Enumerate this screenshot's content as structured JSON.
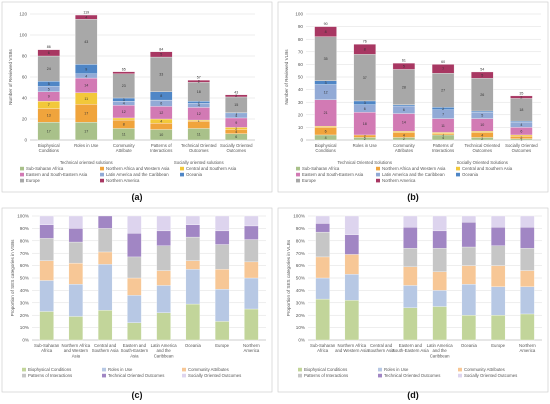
{
  "colors": {
    "Sub-Saharan Africa": "#a9c18a",
    "Northern Africa and Western Asia": "#f0a43c",
    "Central and Southern Asia": "#f2c83a",
    "Eastern and South-Eastern Asia": "#d27ab4",
    "Latin America and the Caribbean": "#92aad6",
    "Oceania": "#4f86c6",
    "Europe": "#a8a8a8",
    "Northern America": "#a83762",
    "Biophysical Conditions": "#c2d59a",
    "Roles in Use": "#b7c8e4",
    "Community Attributes": "#f7c796",
    "Patterns of Interactions": "#c6c6c6",
    "Technical Oriented Outcomes": "#a186c4",
    "Socially Oriented Outcomes": "#ddd4ee"
  },
  "chart_data": [
    {
      "panel": "(a)",
      "type": "bar",
      "stacked": true,
      "ylabel": "Number of Reviewed VSBs",
      "ylim": [
        0,
        120
      ],
      "yticks": [
        0,
        20,
        40,
        60,
        80,
        100,
        120
      ],
      "grid": true,
      "legend_position": "bottom",
      "categories": [
        "Biophysical Conditions",
        "Roles in Use",
        "Community Attribute",
        "Patterns of Interactions",
        "Technical Oriented Outcomes",
        "Socially Oriented Outcomes"
      ],
      "category_labels": [
        "Biophysical|Conditions",
        "Roles in Use",
        "Community|Attribute",
        "Patterns of|Interactions",
        "Technical Oriented|Outcomes",
        "Socially Oriented|Outcomes"
      ],
      "group_labels": [
        "Technical oriented solutions",
        "Socially oriented solutions"
      ],
      "series": [
        {
          "name": "Sub-Saharan Africa",
          "values": [
            17,
            17,
            11,
            10,
            11,
            6
          ]
        },
        {
          "name": "Northern Africa and Western Asia",
          "values": [
            13,
            17,
            8,
            6,
            7,
            4
          ]
        },
        {
          "name": "Central and Southern Asia",
          "values": [
            7,
            11,
            2,
            4,
            1,
            2
          ]
        },
        {
          "name": "Eastern and South-Eastern Asia",
          "values": [
            9,
            14,
            12,
            12,
            12,
            9
          ]
        },
        {
          "name": "Latin America and the Caribbean",
          "values": [
            5,
            4,
            4,
            6,
            4,
            4
          ]
        },
        {
          "name": "Oceania",
          "values": [
            5,
            9,
            3,
            8,
            2,
            1
          ]
        },
        {
          "name": "Europe",
          "values": [
            24,
            43,
            23,
            33,
            18,
            15
          ]
        },
        {
          "name": "Northern America",
          "values": [
            6,
            4,
            2,
            5,
            2,
            2
          ]
        }
      ],
      "data_labels": [
        [
          "17",
          "17",
          "11",
          "10",
          "11",
          "6"
        ],
        [
          "13",
          "17",
          "8",
          "",
          "",
          "4"
        ],
        [
          "7",
          "11",
          "",
          "4",
          "1",
          "2"
        ],
        [
          "9",
          "14",
          "12",
          "12",
          "12",
          "9"
        ],
        [
          "5",
          "4",
          "4",
          "6",
          "4",
          "4"
        ],
        [
          "5",
          "9",
          "3",
          "8",
          "2",
          "1"
        ],
        [
          "24",
          "43",
          "23",
          "33",
          "18",
          "15"
        ],
        [
          "6",
          "4",
          "",
          "5",
          "2",
          "2"
        ]
      ]
    },
    {
      "panel": "(b)",
      "type": "bar",
      "stacked": true,
      "ylabel": "Number of Reviewed VLBs",
      "ylim": [
        0,
        100
      ],
      "yticks": [
        0,
        10,
        20,
        30,
        40,
        50,
        60,
        70,
        80,
        90,
        100
      ],
      "grid": true,
      "legend_position": "bottom",
      "categories": [
        "Biophysical Conditions",
        "Roles in Use",
        "Community Attributes",
        "Patterns of Interactions",
        "Technical Oriented Outcomes",
        "Socially Oriented Outcomes"
      ],
      "category_labels": [
        "Biophysical|Conditions",
        "Roles in Use",
        "Community|Attributes",
        "Patterns of|Interactions",
        "Technical Oriented|Outcomes",
        "Socially Oriented|Outcomes"
      ],
      "group_labels": [
        "Technical Oriented Solutions",
        "Socially Oriented Solutions"
      ],
      "series": [
        {
          "name": "Sub-Saharan Africa",
          "values": [
            4,
            2,
            2,
            4,
            2,
            1
          ]
        },
        {
          "name": "Northern Africa and Western Asia",
          "values": [
            6,
            2,
            4,
            1,
            4,
            2
          ]
        },
        {
          "name": "Central and Southern Asia",
          "values": [
            1,
            0,
            1,
            1,
            1,
            1
          ]
        },
        {
          "name": "Eastern and South-Eastern Asia",
          "values": [
            21,
            18,
            14,
            11,
            10,
            6
          ]
        },
        {
          "name": "Latin America and the Caribbean",
          "values": [
            12,
            6,
            6,
            7,
            5,
            4
          ]
        },
        {
          "name": "Oceania",
          "values": [
            3,
            3,
            1,
            2,
            1,
            1
          ]
        },
        {
          "name": "Europe",
          "values": [
            35,
            37,
            28,
            27,
            26,
            18
          ]
        },
        {
          "name": "Northern America",
          "values": [
            8,
            8,
            5,
            7,
            5,
            2
          ]
        }
      ],
      "data_labels": [
        [
          "4",
          "2",
          "2",
          "4",
          "2",
          "1"
        ],
        [
          "6",
          "2",
          "4",
          "1",
          "4",
          "2"
        ],
        [
          "",
          "",
          "",
          "",
          "",
          ""
        ],
        [
          "21",
          "18",
          "14",
          "11",
          "10",
          "6"
        ],
        [
          "12",
          "6",
          "6",
          "7",
          "5",
          "4"
        ],
        [
          "3",
          "3",
          "",
          "2",
          "",
          ""
        ],
        [
          "35",
          "37",
          "28",
          "27",
          "26",
          "18"
        ],
        [
          "8",
          "8",
          "5",
          "7",
          "5",
          "2"
        ]
      ]
    },
    {
      "panel": "(c)",
      "type": "bar",
      "stacked": true,
      "percent": true,
      "ylabel": "Proportion of SES categories in VSBs",
      "ylim": [
        0,
        100
      ],
      "yticks": [
        0,
        10,
        20,
        30,
        40,
        50,
        60,
        70,
        80,
        90,
        100
      ],
      "ytick_suffix": "%",
      "grid": true,
      "legend_position": "bottom",
      "categories": [
        "Sub-Saharan Africa",
        "Northern Africa and Western Asia",
        "Central and Southern Asia",
        "Eastern and South-Eastern Asia",
        "Latin America and the Caribbean",
        "Oceania",
        "Europe",
        "Northern America"
      ],
      "category_labels": [
        "Sub-Saharan|Africa",
        "Northern Africa|and Western|Asia",
        "Central and|Southern Asia",
        "Eastern and|South-Eastern|Asia",
        "Latin America|and the|Caribbean",
        "Oceania",
        "Europe",
        "Northern|America"
      ],
      "series": [
        {
          "name": "Biophysical Conditions",
          "values": [
            23,
            19,
            24,
            14,
            22,
            29,
            15,
            25
          ]
        },
        {
          "name": "Roles in Use",
          "values": [
            25,
            26,
            37,
            22,
            22,
            28,
            26,
            25
          ]
        },
        {
          "name": "Community Attributes",
          "values": [
            16,
            17,
            10,
            14,
            12,
            7,
            16,
            13
          ]
        },
        {
          "name": "Patterns of Interactions",
          "values": [
            18,
            17,
            19,
            17,
            20,
            19,
            20,
            18
          ]
        },
        {
          "name": "Technical Oriented Outcomes",
          "values": [
            11,
            11,
            10,
            19,
            12,
            10,
            11,
            11
          ]
        },
        {
          "name": "Socially Oriented Outcomes",
          "values": [
            7,
            10,
            0,
            14,
            12,
            7,
            12,
            8
          ]
        }
      ]
    },
    {
      "panel": "(d)",
      "type": "bar",
      "stacked": true,
      "percent": true,
      "ylabel": "Proportion of SES categories in VLBs",
      "ylim": [
        0,
        100
      ],
      "yticks": [
        0,
        10,
        20,
        30,
        40,
        50,
        60,
        70,
        80,
        90,
        100
      ],
      "ytick_suffix": "%",
      "grid": true,
      "legend_position": "bottom",
      "categories": [
        "Sub-Saharan Africa",
        "Northern Africa and Western Asia",
        "Central and Southern Asia",
        "Eastern and South-Eastern Asia",
        "Latin America and the Caribbean",
        "Oceania",
        "Europe",
        "Northern America"
      ],
      "category_labels": [
        "Sub-Saharan|Africa",
        "Northern Africa|and Western Asia",
        "Central and|Southern Asia",
        "Eastern and|South-Eastern Asia",
        "Latin America|and the|Caribbean",
        "Oceania",
        "Europe",
        "Northern|America"
      ],
      "series": [
        {
          "name": "Biophysical Conditions",
          "values": [
            33,
            32,
            0,
            26,
            27,
            20,
            20,
            21
          ]
        },
        {
          "name": "Roles in Use",
          "values": [
            17,
            21,
            0,
            18,
            13,
            25,
            23,
            22
          ]
        },
        {
          "name": "Community Attributes",
          "values": [
            17,
            16,
            0,
            15,
            15,
            15,
            17,
            13
          ]
        },
        {
          "name": "Patterns of Interactions",
          "values": [
            20,
            0,
            0,
            15,
            19,
            15,
            16,
            18
          ]
        },
        {
          "name": "Technical Oriented Outcomes",
          "values": [
            7,
            16,
            0,
            17,
            14,
            20,
            15,
            17
          ]
        },
        {
          "name": "Socially Oriented Outcomes",
          "values": [
            6,
            15,
            0,
            9,
            12,
            5,
            9,
            9
          ]
        }
      ]
    }
  ],
  "panels": [
    {
      "caption": "(a)",
      "legend": [
        "Sub-Saharan Africa",
        "Northern Africa and Western Asia",
        "Central and Southern Asia",
        "Eastern and South-Eastern Asia",
        "Latin America and the Caribbean",
        "Oceania",
        "Europe",
        "Northern America"
      ]
    },
    {
      "caption": "(b)",
      "legend": [
        "Sub-Saharan Africa",
        "Northern Africa and Western Asia",
        "Central and Southern Asia",
        "Eastern and South-Eastern Asia",
        "Latin America and the Caribbean",
        "Oceania",
        "Europe",
        "Northern America"
      ]
    },
    {
      "caption": "(c)",
      "legend": [
        "Biophysical Conditions",
        "Roles in Use",
        "Community Attributes",
        "Patterns of Interactions",
        "Technical Oriented Outcomes",
        "Socially Oriented Outcomes"
      ]
    },
    {
      "caption": "(d)",
      "legend": [
        "Biophysical Conditions",
        "Roles in Use",
        "Community Attributes",
        "Patterns of Interactions",
        "Technical Oriented Outcomes",
        "Socially Oriented Outcomes"
      ]
    }
  ]
}
